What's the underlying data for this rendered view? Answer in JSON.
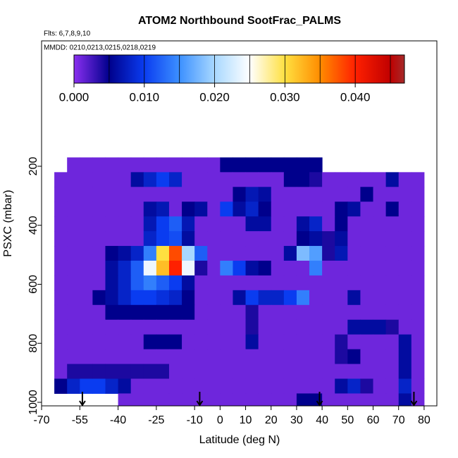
{
  "chart_data": {
    "type": "heatmap",
    "title": "ATOM2 Northbound SootFrac_PALMS",
    "subtitle": "Flts: 6,7,8,9,10",
    "annotation": "MMDD: 0210,0213,0215,0218,0219",
    "xlabel": "Latitude (deg N)",
    "ylabel": "PSXC (mbar)",
    "xlim": [
      -70,
      85
    ],
    "ylim": [
      1012,
      -225
    ],
    "xticks": [
      -70,
      -55,
      -40,
      -25,
      -10,
      0,
      10,
      20,
      30,
      40,
      50,
      60,
      70,
      80
    ],
    "yticks": [
      200,
      400,
      600,
      800,
      1000
    ],
    "x_edges": [
      -65,
      -60,
      -55,
      -50,
      -45,
      -40,
      -35,
      -30,
      -25,
      -20,
      -15,
      -10,
      -5,
      0,
      5,
      10,
      15,
      20,
      25,
      30,
      35,
      40,
      45,
      50,
      55,
      60,
      65,
      70,
      75,
      80
    ],
    "y_edges": [
      170,
      220,
      270,
      320,
      370,
      420,
      470,
      520,
      570,
      620,
      670,
      720,
      770,
      820,
      870,
      920,
      970,
      1010
    ],
    "values": [
      [
        null,
        0.001,
        0.001,
        0.001,
        0.001,
        0.001,
        0.001,
        0.001,
        0.001,
        0.001,
        0.001,
        0.001,
        0.001,
        0.005,
        0.005,
        0.005,
        0.005,
        0.005,
        0.005,
        0.005,
        0.005,
        null,
        null,
        null,
        null,
        null,
        null,
        null,
        null
      ],
      [
        0.001,
        0.001,
        0.001,
        0.001,
        0.001,
        0.001,
        0.006,
        0.008,
        0.01,
        0.008,
        0.001,
        0.001,
        0.001,
        0.001,
        0.001,
        0.001,
        0.001,
        0.001,
        0.005,
        0.005,
        0.004,
        0.001,
        0.001,
        0.001,
        0.001,
        0.001,
        0.006,
        0.001,
        0.001
      ],
      [
        0.001,
        0.001,
        0.001,
        0.001,
        0.001,
        0.001,
        0.001,
        0.001,
        0.001,
        0.001,
        0.001,
        0.001,
        0.001,
        0.001,
        0.005,
        0.007,
        0.006,
        0.001,
        0.001,
        0.001,
        0.001,
        0.001,
        0.001,
        0.001,
        0.005,
        0.001,
        0.001,
        0.001,
        0.001
      ],
      [
        0.001,
        0.001,
        0.001,
        0.001,
        0.001,
        0.001,
        0.001,
        0.006,
        0.007,
        0.001,
        0.005,
        0.006,
        0.001,
        0.01,
        0.006,
        0.008,
        0.005,
        0.001,
        0.001,
        0.001,
        0.001,
        0.001,
        0.005,
        0.006,
        0.001,
        0.001,
        0.005,
        0.001,
        0.001
      ],
      [
        0.001,
        0.001,
        0.001,
        0.001,
        0.001,
        0.001,
        0.001,
        0.007,
        0.01,
        0.012,
        0.007,
        0.001,
        0.001,
        0.001,
        0.001,
        0.006,
        0.006,
        0.001,
        0.001,
        0.006,
        0.008,
        0.001,
        0.005,
        0.001,
        0.001,
        0.001,
        0.001,
        0.001,
        0.001
      ],
      [
        0.001,
        0.001,
        0.001,
        0.001,
        0.001,
        0.001,
        0.001,
        0.008,
        0.01,
        0.011,
        0.006,
        0.001,
        0.001,
        0.001,
        0.001,
        0.001,
        0.001,
        0.001,
        0.001,
        0.005,
        0.006,
        0.004,
        0.006,
        0.001,
        0.001,
        0.001,
        0.001,
        0.001,
        0.001
      ],
      [
        0.001,
        0.001,
        0.001,
        0.001,
        0.005,
        0.006,
        0.008,
        0.014,
        0.03,
        0.038,
        0.02,
        0.012,
        0.001,
        0.001,
        0.001,
        0.001,
        0.001,
        0.001,
        0.006,
        0.018,
        0.016,
        0.004,
        0.007,
        0.001,
        0.001,
        0.001,
        0.001,
        0.001,
        0.001
      ],
      [
        0.001,
        0.001,
        0.001,
        0.001,
        0.006,
        0.008,
        0.012,
        0.024,
        0.032,
        0.04,
        0.024,
        0.004,
        0.001,
        0.014,
        0.01,
        0.006,
        0.005,
        0.001,
        0.001,
        0.001,
        0.014,
        0.001,
        0.001,
        0.001,
        0.001,
        0.001,
        0.001,
        0.001,
        0.001
      ],
      [
        0.001,
        0.001,
        0.001,
        0.001,
        0.006,
        0.008,
        0.012,
        0.014,
        0.012,
        0.01,
        0.006,
        0.001,
        0.001,
        0.001,
        0.001,
        0.001,
        0.001,
        0.001,
        0.001,
        0.001,
        0.001,
        0.001,
        0.001,
        0.001,
        0.001,
        0.001,
        0.001,
        0.001,
        0.001
      ],
      [
        0.001,
        0.001,
        0.001,
        0.005,
        0.006,
        0.008,
        0.01,
        0.01,
        0.009,
        0.008,
        0.005,
        0.001,
        0.001,
        0.001,
        0.006,
        0.01,
        0.008,
        0.008,
        0.01,
        0.014,
        0.001,
        0.001,
        0.001,
        0.006,
        0.001,
        0.001,
        0.001,
        0.001,
        0.001
      ],
      [
        0.001,
        0.001,
        0.001,
        0.001,
        0.005,
        0.005,
        0.005,
        0.005,
        0.005,
        0.005,
        0.005,
        0.001,
        0.001,
        0.001,
        0.001,
        0.004,
        0.001,
        0.001,
        0.001,
        0.001,
        0.001,
        0.001,
        0.001,
        0.001,
        0.001,
        0.001,
        0.001,
        0.001,
        0.001
      ],
      [
        0.001,
        0.001,
        0.001,
        0.001,
        0.001,
        0.001,
        0.001,
        0.001,
        0.001,
        0.001,
        0.001,
        0.001,
        0.001,
        0.001,
        0.001,
        0.004,
        0.001,
        0.001,
        0.001,
        0.001,
        0.001,
        0.001,
        0.001,
        0.006,
        0.006,
        0.006,
        0.004,
        0.001,
        0.001
      ],
      [
        0.001,
        0.001,
        0.001,
        0.001,
        0.001,
        0.001,
        0.001,
        0.005,
        0.005,
        0.005,
        0.001,
        0.001,
        0.001,
        0.001,
        0.001,
        0.006,
        0.001,
        0.001,
        0.001,
        0.001,
        0.001,
        0.001,
        0.004,
        0.001,
        0.001,
        0.001,
        0.001,
        0.006,
        0.001
      ],
      [
        0.001,
        0.001,
        0.001,
        0.001,
        0.001,
        0.001,
        0.001,
        0.001,
        0.001,
        0.001,
        0.001,
        0.001,
        0.001,
        0.001,
        0.001,
        0.001,
        0.001,
        0.001,
        0.001,
        0.001,
        0.001,
        0.001,
        0.004,
        0.005,
        0.001,
        0.001,
        0.001,
        0.006,
        0.001
      ],
      [
        0.001,
        0.004,
        0.004,
        0.004,
        0.004,
        0.004,
        0.004,
        0.004,
        0.004,
        0.001,
        0.001,
        0.001,
        0.001,
        0.001,
        0.001,
        0.001,
        0.001,
        0.001,
        0.001,
        0.001,
        0.001,
        0.001,
        0.001,
        0.001,
        0.001,
        0.001,
        0.001,
        0.006,
        0.001
      ],
      [
        0.005,
        0.008,
        0.01,
        0.01,
        0.008,
        0.006,
        0.001,
        0.001,
        0.001,
        0.001,
        0.001,
        0.001,
        0.001,
        0.001,
        0.001,
        0.001,
        0.001,
        0.001,
        0.001,
        0.001,
        0.001,
        0.001,
        0.006,
        0.008,
        0.004,
        0.001,
        0.001,
        0.008,
        0.001
      ],
      [
        null,
        null,
        null,
        null,
        null,
        0.001,
        0.001,
        0.001,
        0.001,
        0.001,
        0.001,
        0.001,
        0.001,
        0.001,
        0.001,
        0.001,
        0.001,
        0.001,
        0.001,
        0.005,
        0.005,
        0.001,
        0.001,
        0.001,
        0.001,
        0.001,
        0.001,
        0.006,
        0.001
      ]
    ],
    "arrows_x": [
      -54,
      -8,
      39,
      76
    ],
    "colorbar_lim": [
      0,
      0.047
    ],
    "colorbar_ticks": [
      {
        "value": 0,
        "label": "0.000"
      },
      {
        "value": 0.01,
        "label": "0.010"
      },
      {
        "value": 0.02,
        "label": "0.020"
      },
      {
        "value": 0.03,
        "label": "0.030"
      },
      {
        "value": 0.04,
        "label": "0.040"
      }
    ],
    "colorscale": [
      [
        0,
        "#8a2ff0"
      ],
      [
        0.005,
        "#00008c"
      ],
      [
        0.01,
        "#0a3cf0"
      ],
      [
        0.015,
        "#3c90ff"
      ],
      [
        0.02,
        "#a8d8ff"
      ],
      [
        0.025,
        "#ffffff"
      ],
      [
        0.03,
        "#ffe040"
      ],
      [
        0.035,
        "#ff8c00"
      ],
      [
        0.04,
        "#ff2000"
      ],
      [
        0.045,
        "#c00000"
      ],
      [
        0.047,
        "#a52a2a"
      ]
    ]
  }
}
